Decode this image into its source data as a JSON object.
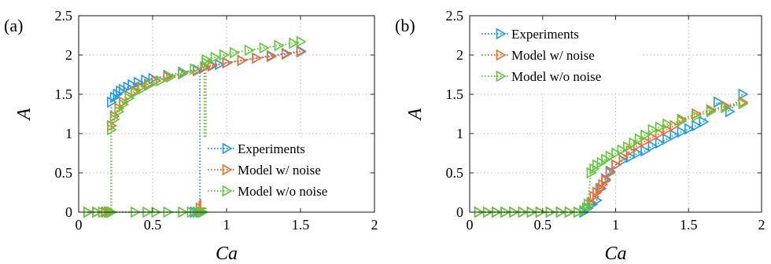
{
  "chart_data": [
    {
      "type": "line",
      "panel_label": "(a)",
      "xlabel": "Ca",
      "ylabel": "A",
      "xlim": [
        0,
        2
      ],
      "ylim": [
        0,
        2.5
      ],
      "xticks": [
        0,
        0.5,
        1,
        1.5,
        2
      ],
      "xtick_labels": [
        "0",
        "0.5",
        "1",
        "1.5",
        "2"
      ],
      "yticks": [
        0,
        0.5,
        1,
        1.5,
        2,
        2.5
      ],
      "ytick_labels": [
        "0",
        "0.5",
        "1",
        "1.5",
        "2",
        "2.5"
      ],
      "grid": true,
      "legend_position": "bottom-right",
      "series": [
        {
          "name": "Experiments",
          "color": "#1f9be6",
          "marker": "triangle-right",
          "lower_branch": {
            "x": [
              0.06,
              0.12,
              0.18,
              0.2,
              0.21,
              0.22
            ],
            "y": [
              0,
              0,
              0,
              0,
              0,
              0
            ]
          },
          "upper_branch": {
            "x": [
              0.22,
              0.24,
              0.26,
              0.28,
              0.3,
              0.33,
              0.36,
              0.4,
              0.45,
              0.5,
              0.6,
              0.7,
              0.8,
              0.85,
              0.9,
              0.95,
              1.0,
              1.1,
              1.2,
              1.3,
              1.4,
              1.5
            ],
            "y": [
              1.4,
              1.46,
              1.5,
              1.54,
              1.56,
              1.59,
              1.62,
              1.65,
              1.68,
              1.7,
              1.74,
              1.78,
              1.81,
              1.84,
              1.86,
              1.88,
              1.9,
              1.93,
              1.96,
              1.99,
              2.02,
              2.05
            ]
          },
          "down_sweep": {
            "x": [
              0.78,
              0.8,
              0.82
            ],
            "y": [
              0,
              0,
              0
            ]
          }
        },
        {
          "name": "Model w/ noise",
          "color": "#f26b2a",
          "marker": "triangle-right",
          "lower_branch": {
            "x": [
              0.06,
              0.12,
              0.18,
              0.21,
              0.22
            ],
            "y": [
              0,
              0,
              0,
              0,
              0
            ]
          },
          "upper_branch": {
            "x": [
              0.22,
              0.24,
              0.27,
              0.3,
              0.34,
              0.38,
              0.42,
              0.47,
              0.52,
              0.6,
              0.7,
              0.8,
              0.85,
              0.9,
              1.0,
              1.1,
              1.2,
              1.3,
              1.4,
              1.5
            ],
            "y": [
              1.1,
              1.22,
              1.32,
              1.4,
              1.48,
              1.54,
              1.59,
              1.63,
              1.67,
              1.72,
              1.76,
              1.8,
              1.85,
              1.87,
              1.9,
              1.93,
              1.96,
              1.98,
              2.01,
              2.04
            ]
          },
          "down_sweep": {
            "x": [
              0.8,
              0.82,
              0.84,
              0.85
            ],
            "y": [
              0,
              0.05,
              0.08,
              0.1
            ]
          }
        },
        {
          "name": "Model w/o noise",
          "color": "#5ec93a",
          "marker": "triangle-right",
          "lower_branch": {
            "x": [
              0.06,
              0.12,
              0.16,
              0.2,
              0.22,
              0.38,
              0.46,
              0.52,
              0.6,
              0.7,
              0.76,
              0.8,
              0.83
            ],
            "y": [
              0,
              0,
              0,
              0,
              0,
              0,
              0,
              0,
              0,
              0,
              0,
              0,
              0
            ]
          },
          "upper_branch": {
            "x": [
              0.22,
              0.24,
              0.27,
              0.3,
              0.34,
              0.38,
              0.43,
              0.48,
              0.55,
              0.62,
              0.7,
              0.78,
              0.86,
              0.92,
              0.98,
              1.05,
              1.15,
              1.25,
              1.35,
              1.45,
              1.5
            ],
            "y": [
              1.05,
              1.18,
              1.28,
              1.37,
              1.45,
              1.52,
              1.57,
              1.62,
              1.67,
              1.72,
              1.77,
              1.82,
              1.94,
              1.97,
              2.0,
              2.03,
              2.06,
              2.09,
              2.12,
              2.15,
              2.17
            ]
          },
          "down_sweep": {
            "x": [
              0.84,
              0.86
            ],
            "y": [
              0,
              1.9
            ]
          }
        }
      ]
    },
    {
      "type": "line",
      "panel_label": "(b)",
      "xlabel": "Ca",
      "ylabel": "A",
      "xlim": [
        0,
        2
      ],
      "ylim": [
        0,
        2.5
      ],
      "xticks": [
        0,
        0.5,
        1,
        1.5,
        2
      ],
      "xtick_labels": [
        "0",
        "0.5",
        "1",
        "1.5",
        "2"
      ],
      "yticks": [
        0,
        0.5,
        1,
        1.5,
        2,
        2.5
      ],
      "ytick_labels": [
        "0",
        "0.5",
        "1",
        "1.5",
        "2",
        "2.5"
      ],
      "grid": true,
      "legend_position": "top-left",
      "series": [
        {
          "name": "Experiments",
          "color": "#1f9be6",
          "marker": "triangle-right",
          "x": [
            0.06,
            0.12,
            0.18,
            0.24,
            0.3,
            0.36,
            0.42,
            0.48,
            0.55,
            0.62,
            0.68,
            0.74,
            0.78,
            0.81,
            0.84,
            0.87,
            0.9,
            0.93,
            0.96,
            1.0,
            1.05,
            1.1,
            1.15,
            1.2,
            1.25,
            1.3,
            1.35,
            1.4,
            1.45,
            1.5,
            1.55,
            1.6,
            1.7,
            1.78,
            1.87
          ],
          "y": [
            0,
            0,
            0,
            0,
            0,
            0,
            0,
            0,
            0,
            0,
            0,
            0,
            0,
            0.05,
            0.1,
            0.15,
            0.3,
            0.42,
            0.52,
            0.6,
            0.66,
            0.7,
            0.75,
            0.78,
            0.84,
            0.88,
            0.93,
            0.98,
            1.02,
            1.06,
            1.1,
            1.15,
            1.4,
            1.28,
            1.5
          ]
        },
        {
          "name": "Model w/ noise",
          "color": "#f26b2a",
          "marker": "triangle-right",
          "x": [
            0.06,
            0.12,
            0.18,
            0.24,
            0.3,
            0.36,
            0.42,
            0.48,
            0.55,
            0.62,
            0.68,
            0.74,
            0.8,
            0.83,
            0.85,
            0.87,
            0.89,
            0.91,
            0.93,
            0.96,
            1.0,
            1.05,
            1.1,
            1.15,
            1.2,
            1.25,
            1.3,
            1.35,
            1.4,
            1.45,
            1.55,
            1.65,
            1.75,
            1.87
          ],
          "y": [
            0,
            0,
            0,
            0,
            0,
            0,
            0,
            0,
            0,
            0,
            0,
            0,
            0.05,
            0.12,
            0.2,
            0.25,
            0.3,
            0.35,
            0.4,
            0.5,
            0.6,
            0.7,
            0.78,
            0.85,
            0.9,
            0.95,
            1.0,
            1.05,
            1.1,
            1.18,
            1.25,
            1.3,
            1.35,
            1.4
          ]
        },
        {
          "name": "Model w/o noise",
          "color": "#5ec93a",
          "marker": "triangle-right",
          "x": [
            0.06,
            0.12,
            0.18,
            0.24,
            0.3,
            0.36,
            0.42,
            0.48,
            0.55,
            0.62,
            0.68,
            0.74,
            0.78,
            0.8,
            0.81,
            0.83,
            0.85,
            0.87,
            0.9,
            0.93,
            0.96,
            1.0,
            1.04,
            1.08,
            1.12,
            1.16,
            1.2,
            1.25,
            1.3,
            1.35,
            1.45,
            1.55,
            1.65,
            1.75,
            1.87
          ],
          "y": [
            0,
            0,
            0,
            0,
            0,
            0,
            0,
            0,
            0,
            0,
            0,
            0,
            0.02,
            0.05,
            0.1,
            0.5,
            0.55,
            0.6,
            0.63,
            0.67,
            0.71,
            0.75,
            0.79,
            0.83,
            0.88,
            0.93,
            0.98,
            1.05,
            1.08,
            1.12,
            1.16,
            1.22,
            1.28,
            1.33,
            1.38
          ]
        }
      ]
    }
  ]
}
